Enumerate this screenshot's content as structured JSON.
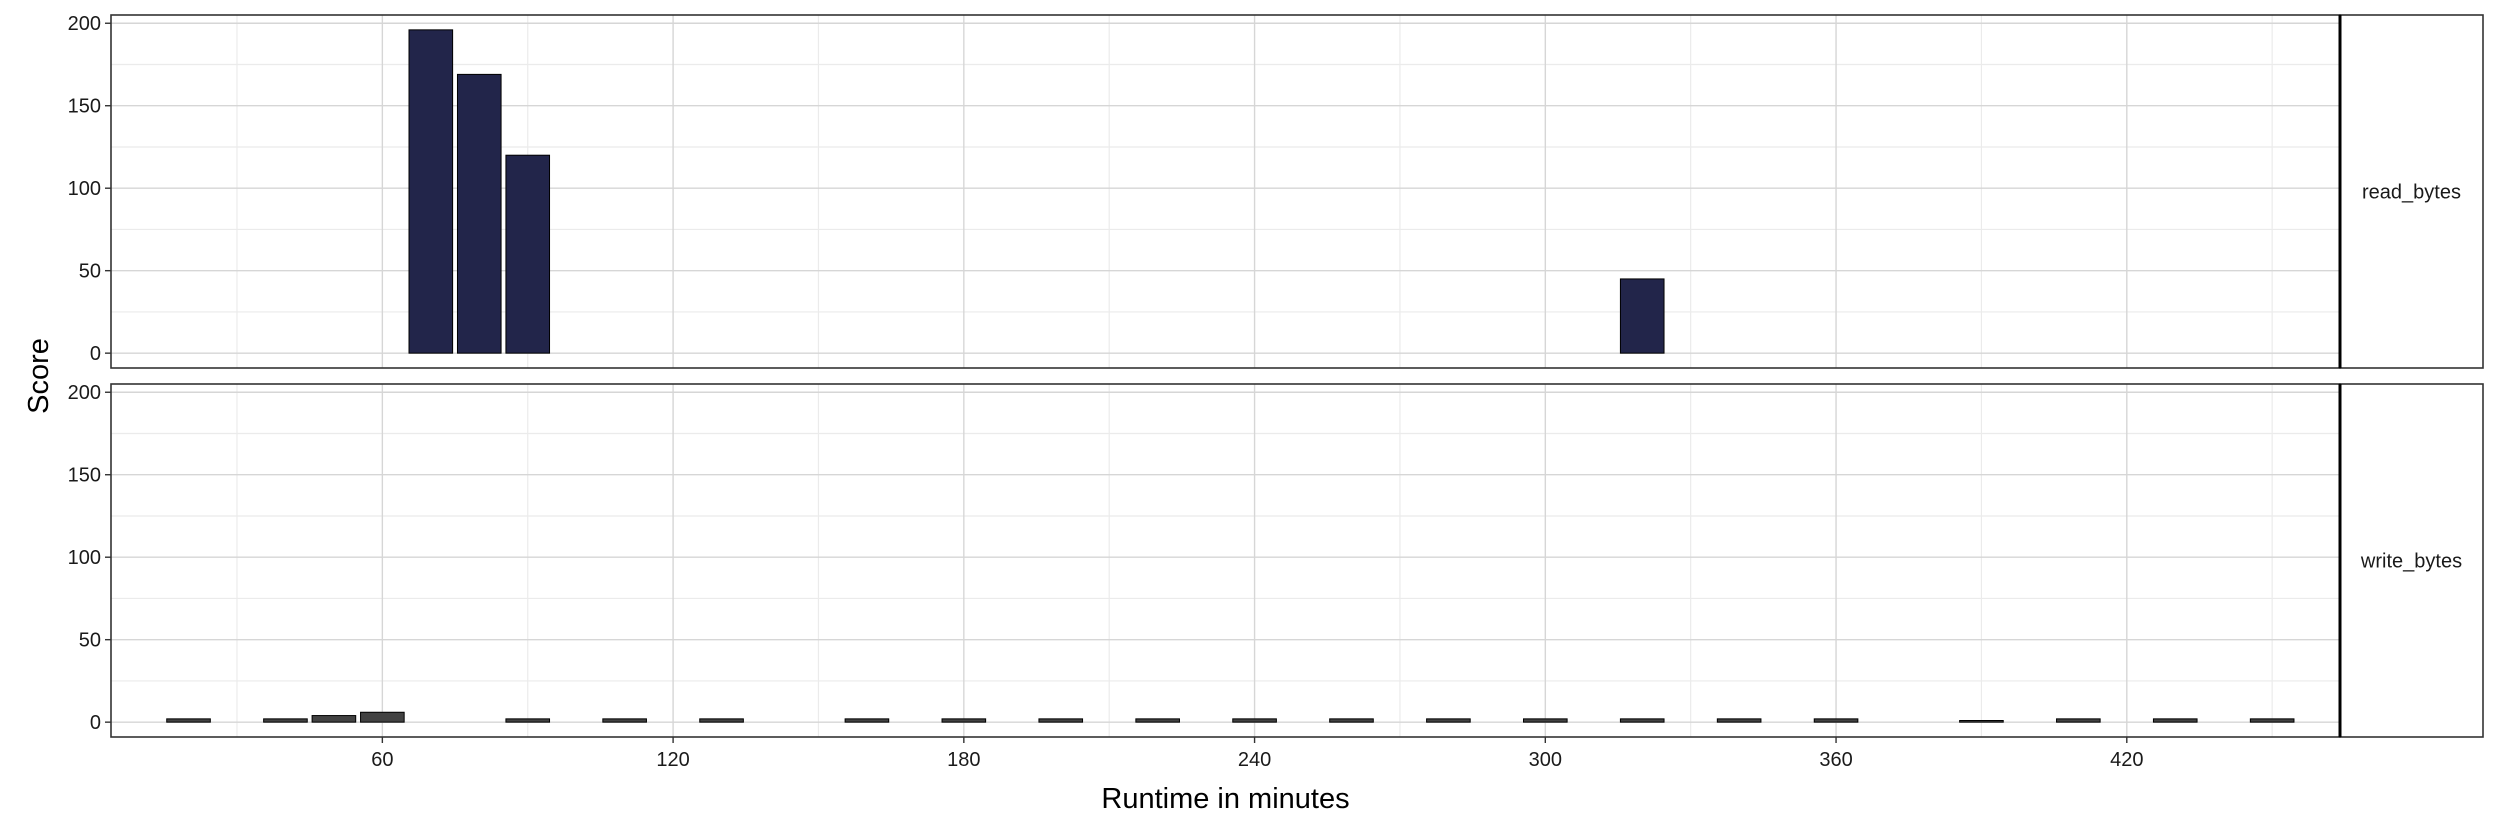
{
  "chart_data": {
    "type": "bar",
    "xlabel": "Runtime in minutes",
    "ylabel": "Score",
    "xlim": [
      4,
      464
    ],
    "ylim": [
      -9,
      205
    ],
    "x_ticks": [
      60,
      120,
      180,
      240,
      300,
      360,
      420
    ],
    "y_ticks": [
      0,
      50,
      100,
      150,
      200
    ],
    "bar_width": 9,
    "grid": true,
    "facets": [
      {
        "label": "read_bytes",
        "color": "#22254a",
        "bars": [
          {
            "x": 70,
            "y": 196
          },
          {
            "x": 80,
            "y": 169
          },
          {
            "x": 90,
            "y": 120
          },
          {
            "x": 320,
            "y": 45
          }
        ]
      },
      {
        "label": "write_bytes",
        "color": "#424242",
        "bars": [
          {
            "x": 20,
            "y": 2
          },
          {
            "x": 40,
            "y": 2
          },
          {
            "x": 50,
            "y": 4
          },
          {
            "x": 60,
            "y": 6
          },
          {
            "x": 90,
            "y": 2
          },
          {
            "x": 110,
            "y": 2
          },
          {
            "x": 130,
            "y": 2
          },
          {
            "x": 160,
            "y": 2
          },
          {
            "x": 180,
            "y": 2
          },
          {
            "x": 200,
            "y": 2
          },
          {
            "x": 220,
            "y": 2
          },
          {
            "x": 240,
            "y": 2
          },
          {
            "x": 260,
            "y": 2
          },
          {
            "x": 280,
            "y": 2
          },
          {
            "x": 300,
            "y": 2
          },
          {
            "x": 320,
            "y": 2
          },
          {
            "x": 340,
            "y": 2
          },
          {
            "x": 360,
            "y": 2
          },
          {
            "x": 390,
            "y": 1
          },
          {
            "x": 410,
            "y": 2
          },
          {
            "x": 430,
            "y": 2
          },
          {
            "x": 450,
            "y": 2
          }
        ]
      }
    ]
  }
}
